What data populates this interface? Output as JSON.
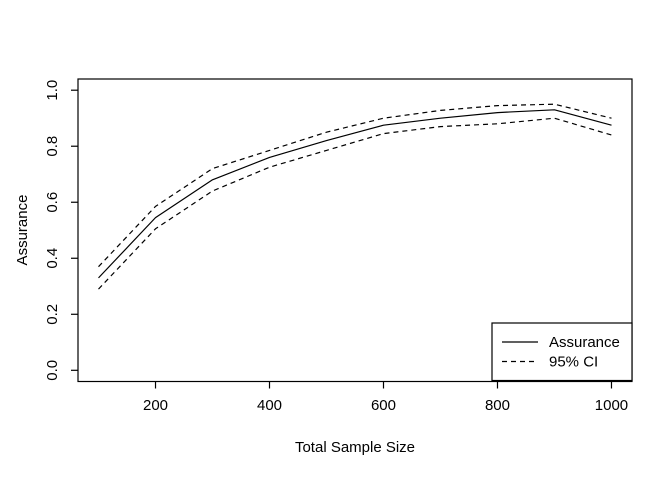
{
  "figure": {
    "background_color": "#ffffff",
    "foreground_color": "#000000"
  },
  "chart_data": {
    "type": "line",
    "title": "",
    "xlabel": "Total Sample Size",
    "ylabel": "Assurance",
    "x": [
      100,
      200,
      300,
      400,
      500,
      600,
      700,
      800,
      900,
      1000
    ],
    "series": [
      {
        "name": "Assurance",
        "style": "solid",
        "values": [
          0.33,
          0.545,
          0.68,
          0.76,
          0.82,
          0.875,
          0.9,
          0.92,
          0.93,
          0.875
        ]
      },
      {
        "name": "95% CI upper",
        "style": "dashed",
        "values": [
          0.37,
          0.585,
          0.72,
          0.785,
          0.85,
          0.9,
          0.928,
          0.945,
          0.95,
          0.9
        ]
      },
      {
        "name": "95% CI lower",
        "style": "dashed",
        "values": [
          0.29,
          0.505,
          0.64,
          0.725,
          0.785,
          0.845,
          0.87,
          0.88,
          0.9,
          0.84
        ]
      }
    ],
    "xticks": {
      "values": [
        200,
        400,
        600,
        800,
        1000
      ],
      "labels": [
        "200",
        "400",
        "600",
        "800",
        "1000"
      ]
    },
    "yticks": {
      "values": [
        0.0,
        0.2,
        0.4,
        0.6,
        0.8,
        1.0
      ],
      "labels": [
        "0.0",
        "0.2",
        "0.4",
        "0.6",
        "0.8",
        "1.0"
      ]
    },
    "xlim": [
      64,
      1036
    ],
    "ylim": [
      -0.04,
      1.04
    ],
    "grid": false,
    "line_color": "#000000",
    "legend": {
      "position": "bottom-right",
      "entries": [
        {
          "label": "Assurance",
          "style": "solid"
        },
        {
          "label": "95% CI",
          "style": "dashed"
        }
      ]
    }
  }
}
